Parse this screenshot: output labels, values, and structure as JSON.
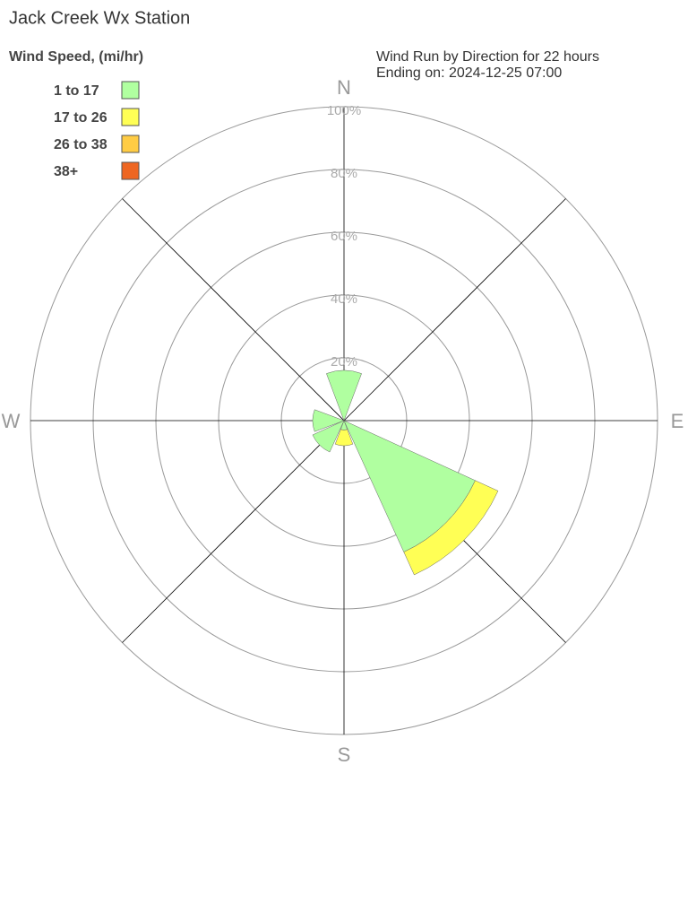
{
  "chart_data": {
    "type": "windrose",
    "title": "Jack Creek Wx Station",
    "legend_title": "Wind Speed, (mi/hr)",
    "subtitle": "Wind Run by Direction for 22 hours",
    "subtitle2": "Ending on: 2024-12-25 07:00",
    "categories": [
      "N",
      null,
      "E",
      null,
      "S",
      null,
      "W",
      null
    ],
    "series": [
      {
        "name": "1 to 17",
        "color": "#b0ffa0",
        "values": [
          16,
          0,
          0,
          46,
          3,
          11,
          10,
          0
        ]
      },
      {
        "name": "17 to 26",
        "color": "#ffff55",
        "values": [
          0,
          0,
          0,
          8,
          5,
          0,
          0,
          0
        ]
      },
      {
        "name": "26 to 38",
        "color": "#ffcc44",
        "values": [
          0,
          0,
          0,
          0,
          0,
          0,
          0,
          0
        ]
      },
      {
        "name": "38+",
        "color": "#ee6622",
        "values": [
          0,
          0,
          0,
          0,
          0,
          0,
          0,
          0
        ]
      }
    ],
    "rlim": [
      0,
      100
    ],
    "rticks": [
      {
        "value": 20,
        "label": "20%"
      },
      {
        "value": 40,
        "label": "40%"
      },
      {
        "value": 60,
        "label": "60%"
      },
      {
        "value": 80,
        "label": "80%"
      },
      {
        "value": 100,
        "label": "100%"
      }
    ],
    "grid": true
  }
}
